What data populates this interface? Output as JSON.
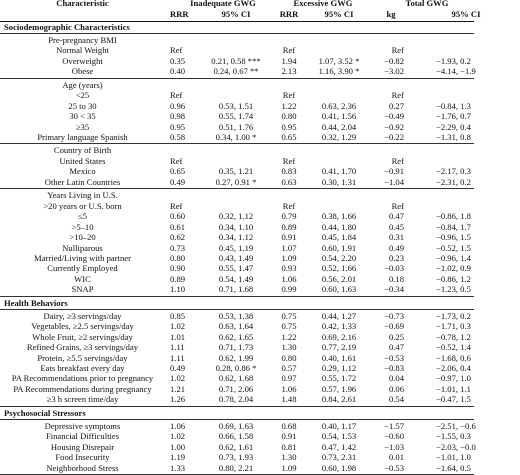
{
  "header1": [
    "Characteristic",
    "Inadequate GWG",
    "Excessive GWG",
    "Total GWG"
  ],
  "header2": [
    "",
    "RRR",
    "95% CI",
    "RRR",
    "95% CI",
    "kg",
    "95% CI"
  ],
  "sections": [
    {
      "title": "Sociodemographic Characteristics",
      "groups": [
        {
          "rows": [
            {
              "label": "Pre-pregnancy BMI",
              "indent": 0,
              "cells": [
                "",
                "",
                "",
                "",
                "",
                ""
              ]
            },
            {
              "label": "Normal Weight",
              "indent": 1,
              "cells": [
                "Ref",
                "",
                "Ref",
                "",
                "Ref",
                ""
              ]
            },
            {
              "label": "Overweight",
              "indent": 2,
              "cells": [
                "0.35",
                "0.21, 0.58 ***",
                "1.94",
                "1.07, 3.52 *",
                "−0.82",
                "−1.93, 0.2"
              ]
            },
            {
              "label": "Obese",
              "indent": 2,
              "cells": [
                "0.40",
                "0.24, 0.67 **",
                "2.13",
                "1.16, 3.90 *",
                "−3.02",
                "−4.14, −1.9"
              ]
            }
          ]
        },
        {
          "rows": [
            {
              "label": "Age (years)",
              "indent": 0,
              "cells": [
                "",
                "",
                "",
                "",
                "",
                ""
              ]
            },
            {
              "label": "<25",
              "indent": 1,
              "cells": [
                "Ref",
                "",
                "Ref",
                "",
                "Ref",
                ""
              ]
            },
            {
              "label": "25 to 30",
              "indent": 1,
              "cells": [
                "0.96",
                "0.53, 1.51",
                "1.22",
                "0.63, 2.36",
                "0.27",
                "−0.84, 1.3"
              ]
            },
            {
              "label": "30 < 35",
              "indent": 1,
              "cells": [
                "0.98",
                "0.55, 1.74",
                "0.80",
                "0.41, 1.56",
                "−0.49",
                "−1.76, 0.7"
              ]
            },
            {
              "label": "≥35",
              "indent": 1,
              "cells": [
                "0.95",
                "0.51, 1.76",
                "0.95",
                "0.44, 2.04",
                "−0.92",
                "−2.29, 0.4"
              ]
            },
            {
              "label": "Primary language Spanish",
              "indent": 1,
              "cells": [
                "0.58",
                "0.34, 1.00 *",
                "0.65",
                "0.32, 1.29",
                "−0.22",
                "−1.31, 0.8"
              ]
            }
          ]
        },
        {
          "rows": [
            {
              "label": "Country of Birth",
              "indent": 0,
              "cells": [
                "",
                "",
                "",
                "",
                "",
                ""
              ]
            },
            {
              "label": "United States",
              "indent": 1,
              "cells": [
                "Ref",
                "",
                "Ref",
                "",
                "Ref",
                ""
              ]
            },
            {
              "label": "Mexico",
              "indent": 2,
              "cells": [
                "0.65",
                "0.35, 1.21",
                "0.83",
                "0.41, 1.70",
                "−0.91",
                "−2.17, 0.3"
              ]
            },
            {
              "label": "Other Latin Countries",
              "indent": 1,
              "cells": [
                "0.49",
                "0.27, 0.91 *",
                "0.63",
                "0.30, 1.31",
                "−1.04",
                "−2.31, 0.2"
              ]
            }
          ]
        },
        {
          "rows": [
            {
              "label": "Years Living in U.S.",
              "indent": 0,
              "cells": [
                "",
                "",
                "",
                "",
                "",
                ""
              ]
            },
            {
              "label": ">20 years or U.S. born",
              "indent": 1,
              "cells": [
                "Ref",
                "",
                "Ref",
                "",
                "Ref",
                ""
              ]
            },
            {
              "label": "≤5",
              "indent": 2,
              "cells": [
                "0.60",
                "0.32, 1.12",
                "0.79",
                "0.38, 1.66",
                "0.47",
                "−0.86, 1.8"
              ]
            },
            {
              "label": ">5–10",
              "indent": 2,
              "cells": [
                "0.61",
                "0.34, 1.10",
                "0.89",
                "0.44, 1.80",
                "0.45",
                "−0.84, 1.7"
              ]
            },
            {
              "label": ">10–20",
              "indent": 2,
              "cells": [
                "0.62",
                "0.34, 1.12",
                "0.91",
                "0.45, 1.84",
                "0.31",
                "−0.96, 1.5"
              ]
            },
            {
              "label": "Nulliparous",
              "indent": 1,
              "cells": [
                "0.73",
                "0.45, 1.19",
                "1.07",
                "0.60, 1.91",
                "0.49",
                "−0.52, 1.5"
              ]
            },
            {
              "label": "Married/Living with partner",
              "indent": 1,
              "cells": [
                "0.80",
                "0.43, 1.49",
                "1.09",
                "0.54, 2.20",
                "0.23",
                "−0.96, 1.4"
              ]
            },
            {
              "label": "Currently Employed",
              "indent": 1,
              "cells": [
                "0.90",
                "0.55, 1.47",
                "0.93",
                "0.52, 1.66",
                "−0.03",
                "−1.02, 0.9"
              ]
            },
            {
              "label": "WIC",
              "indent": 2,
              "cells": [
                "0.89",
                "0.54, 1.49",
                "1.06",
                "0.56, 2.01",
                "0.18",
                "−0.86, 1.2"
              ]
            },
            {
              "label": "SNAP",
              "indent": 2,
              "cells": [
                "1.10",
                "0.71, 1.68",
                "0.99",
                "0.60, 1.63",
                "−0.34",
                "−1.23, 0.5"
              ]
            }
          ]
        }
      ]
    },
    {
      "title": "Health Behaviors",
      "groups": [
        {
          "rows": [
            {
              "label": "Dairy, ≥3 servings/day",
              "indent": 1,
              "cells": [
                "0.85",
                "0.53, 1.38",
                "0.75",
                "0.44, 1.27",
                "−0.73",
                "−1.73, 0.2"
              ]
            },
            {
              "label": "Vegetables, ≥2.5 servings/day",
              "indent": 1,
              "cells": [
                "1.02",
                "0.63, 1.64",
                "0.75",
                "0.42, 1.33",
                "−0.69",
                "−1.71, 0.3"
              ]
            },
            {
              "label": "Whole Fruit, ≥2 servings/day",
              "indent": 1,
              "cells": [
                "1.01",
                "0.62, 1.65",
                "1.22",
                "0.69, 2.16",
                "0.25",
                "−0.78, 1.2"
              ]
            },
            {
              "label": "Refined Grains, ≥3 servings/day",
              "indent": 1,
              "cells": [
                "1.11",
                "0.71, 1.73",
                "1.30",
                "0.77, 2.19",
                "0.47",
                "−0.52, 1.4"
              ]
            },
            {
              "label": "Protein, ≥5.5 servings/day",
              "indent": 1,
              "cells": [
                "1.11",
                "0.62, 1.99",
                "0.80",
                "0.40, 1.61",
                "−0.53",
                "−1.68, 0.6"
              ]
            },
            {
              "label": "Eats breakfast every day",
              "indent": 1,
              "cells": [
                "0.49",
                "0.28, 0.86 *",
                "0.57",
                "0.29, 1.12",
                "−0.83",
                "−2.06, 0.4"
              ]
            },
            {
              "label": "PA Recommendations prior to pregnancy",
              "indent": 1,
              "cells": [
                "1.02",
                "0.62, 1.68",
                "0.97",
                "0.55, 1.72",
                "0.04",
                "−0.97, 1.0"
              ]
            },
            {
              "label": "PA Recommendations during pregnancy",
              "indent": 1,
              "cells": [
                "1.21",
                "0.71, 2.06",
                "1.06",
                "0.57, 1.96",
                "0.06",
                "−1.01, 1.1"
              ]
            },
            {
              "label": "≥3 h screen time/day",
              "indent": 1,
              "cells": [
                "1.26",
                "0.78, 2.04",
                "1.48",
                "0.84, 2.61",
                "0.54",
                "−0.47, 1.5"
              ]
            }
          ]
        }
      ]
    },
    {
      "title": "Psychosocial Stressors",
      "groups": [
        {
          "rows": [
            {
              "label": "Depressive symptoms",
              "indent": 1,
              "cells": [
                "1.06",
                "0.69, 1.63",
                "0.68",
                "0.40, 1.17",
                "−1.57",
                "−2.51, −0.6"
              ]
            },
            {
              "label": "Financial Difficulties",
              "indent": 1,
              "cells": [
                "1.02",
                "0.66, 1.58",
                "0.91",
                "0.54, 1.53",
                "−0.60",
                "−1.55, 0.3"
              ]
            },
            {
              "label": "Housing Disrepair",
              "indent": 1,
              "cells": [
                "1.00",
                "0.62, 1.61",
                "0.81",
                "0.47, 1.42",
                "−1.03",
                "−2.03, −0.0"
              ]
            },
            {
              "label": "Food Insecurity",
              "indent": 1,
              "cells": [
                "1.19",
                "0.73, 1.93",
                "1.30",
                "0.73, 2.31",
                "0.01",
                "−1.01, 1.0"
              ]
            },
            {
              "label": "Neighborhood Stress",
              "indent": 1,
              "cells": [
                "1.33",
                "0.80, 2.21",
                "1.09",
                "0.60, 1.98",
                "−0.53",
                "−1.64, 0.5"
              ]
            }
          ]
        }
      ]
    }
  ]
}
